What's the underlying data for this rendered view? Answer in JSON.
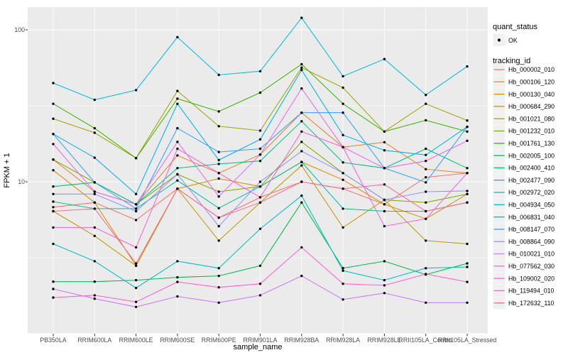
{
  "legend": {
    "quant_title": "quant_status",
    "ok_label": "OK",
    "tracking_title": "tracking_id"
  },
  "colors": {
    "panel_background": "#EBEBEB",
    "gridline": "#FFFFFF",
    "axis_text": "#4D4D4D",
    "axis_title": "#000000",
    "point": "#000000",
    "legend_key_background": "#F0F0F0",
    "tick_mark": "#333333"
  },
  "chart_data": {
    "type": "line",
    "title": "",
    "xlabel": "sample_name",
    "ylabel": "FPKM + 1",
    "y_scale": "log10",
    "ylim": [
      1,
      143
    ],
    "y_tick_labels": [
      "100",
      "10"
    ],
    "y_tick_values": [
      100,
      10
    ],
    "y_major_breaks": [
      100,
      10,
      1
    ],
    "y_minor_breaks": [
      31.62,
      3.162
    ],
    "grid": true,
    "legend_position": "right",
    "point_shape": "filled-circle",
    "categories": [
      "PB350LA",
      "RRIM600LA",
      "RRIM600LE",
      "RRIM600SE",
      "RRIM600PE",
      "RRIM901LA",
      "RRIM928BA",
      "RRIM928LA",
      "RRIM928LE",
      "RRII105LA_Control",
      "RRII105LA_Stressed"
    ],
    "series": [
      {
        "name": "Hb_000002_010",
        "color": "#F8766D",
        "values": [
          6.8,
          7.3,
          5.6,
          9.0,
          5.8,
          7.9,
          10.0,
          9.0,
          7.1,
          10.7,
          11.4
        ]
      },
      {
        "name": "Hb_000106_120",
        "color": "#EA8331",
        "values": [
          14.0,
          8.6,
          7.1,
          14.9,
          11.4,
          15.1,
          28.5,
          16.9,
          18.2,
          12.1,
          11.4
        ]
      },
      {
        "name": "Hb_000130_040",
        "color": "#D89000",
        "values": [
          11.9,
          7.3,
          2.8,
          9.0,
          10.5,
          9.3,
          13.5,
          10.3,
          7.1,
          5.7,
          8.3
        ]
      },
      {
        "name": "Hb_000684_290",
        "color": "#C09B00",
        "values": [
          6.4,
          4.4,
          2.8,
          9.0,
          4.1,
          7.3,
          12.8,
          5.0,
          7.6,
          4.1,
          3.9
        ]
      },
      {
        "name": "Hb_001021_080",
        "color": "#A3A500",
        "values": [
          26.0,
          21.0,
          14.3,
          39.6,
          23.2,
          21.7,
          56.4,
          41.6,
          21.4,
          32.6,
          25.3
        ]
      },
      {
        "name": "Hb_001232_010",
        "color": "#7CAE00",
        "values": [
          14.0,
          9.9,
          7.1,
          11.2,
          8.6,
          9.3,
          18.3,
          11.4,
          7.6,
          7.3,
          8.3
        ]
      },
      {
        "name": "Hb_001761_130",
        "color": "#39B600",
        "values": [
          32.6,
          22.5,
          14.3,
          35.2,
          29.0,
          38.6,
          59.4,
          32.6,
          21.4,
          25.4,
          21.4
        ]
      },
      {
        "name": "Hb_002005_100",
        "color": "#00BB4E",
        "values": [
          2.2,
          2.2,
          2.25,
          2.35,
          2.4,
          2.8,
          7.3,
          2.7,
          3.0,
          2.45,
          2.9
        ]
      },
      {
        "name": "Hb_002400_410",
        "color": "#00C087",
        "values": [
          9.3,
          9.9,
          7.1,
          12.3,
          13.1,
          13.7,
          25.0,
          13.4,
          12.3,
          16.5,
          12.3
        ]
      },
      {
        "name": "Hb_002477_090",
        "color": "#00C1A3",
        "values": [
          7.4,
          6.65,
          6.65,
          10.2,
          6.7,
          9.3,
          13.5,
          6.65,
          6.4,
          6.4,
          7.3
        ]
      },
      {
        "name": "Hb_002972_020",
        "color": "#00BFC4",
        "values": [
          3.9,
          3.0,
          2.0,
          3.0,
          2.7,
          4.9,
          8.1,
          2.6,
          2.25,
          2.7,
          2.75
        ]
      },
      {
        "name": "Hb_004934_050",
        "color": "#00BAE0",
        "values": [
          44.6,
          34.6,
          40.1,
          89.5,
          50.5,
          53.4,
          120.0,
          49.5,
          64.2,
          37.3,
          57.4
        ]
      },
      {
        "name": "Hb_006831_040",
        "color": "#00B0F6",
        "values": [
          20.6,
          14.4,
          8.3,
          32.6,
          13.9,
          19.0,
          54.4,
          20.3,
          16.1,
          15.0,
          23.0
        ]
      },
      {
        "name": "Hb_008147_070",
        "color": "#35A2FF",
        "values": [
          20.6,
          9.9,
          6.65,
          22.5,
          15.7,
          16.5,
          28.5,
          28.5,
          12.3,
          9.9,
          23.0
        ]
      },
      {
        "name": "Hb_008864_090",
        "color": "#9590FF",
        "values": [
          8.3,
          8.3,
          6.4,
          11.2,
          5.1,
          10.0,
          15.9,
          11.4,
          7.6,
          8.6,
          8.7
        ]
      },
      {
        "name": "Hb_010021_010",
        "color": "#C77CFF",
        "values": [
          1.97,
          1.7,
          1.5,
          1.76,
          1.6,
          1.79,
          2.4,
          1.68,
          1.85,
          1.6,
          1.6
        ]
      },
      {
        "name": "Hb_077562_030",
        "color": "#E76BF3",
        "values": [
          17.7,
          8.6,
          7.1,
          18.3,
          8.0,
          15.1,
          41.1,
          16.9,
          12.3,
          13.7,
          18.6
        ]
      },
      {
        "name": "Hb_109002_020",
        "color": "#FA62DB",
        "values": [
          5.0,
          5.0,
          3.7,
          16.5,
          11.4,
          7.9,
          21.4,
          16.9,
          5.1,
          5.7,
          11.4
        ]
      },
      {
        "name": "Hb_119494_010",
        "color": "#FF61CC",
        "values": [
          1.73,
          1.79,
          1.62,
          2.19,
          2.02,
          2.13,
          3.7,
          2.13,
          2.08,
          2.47,
          2.19
        ]
      },
      {
        "name": "Hb_172632_110",
        "color": "#FF6A98",
        "values": [
          6.4,
          6.65,
          2.9,
          9.0,
          5.8,
          7.3,
          10.0,
          9.0,
          9.6,
          6.4,
          7.3
        ]
      }
    ]
  }
}
